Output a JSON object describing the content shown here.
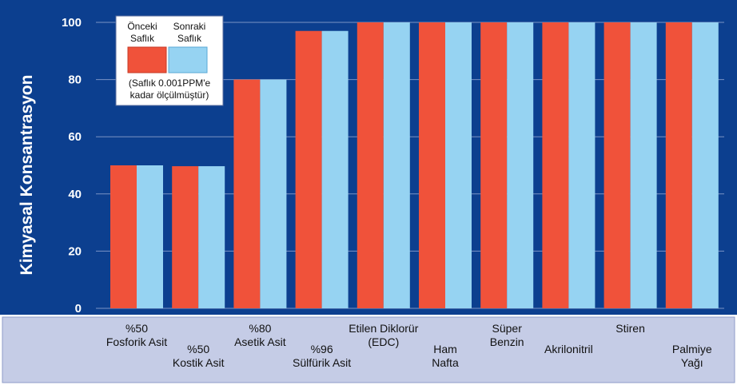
{
  "chart_data": {
    "type": "bar",
    "ylabel": "Kimyasal Konsantrasyon",
    "xlabel": "",
    "ylim": [
      0,
      100
    ],
    "yticks": [
      0,
      20,
      40,
      60,
      80,
      100
    ],
    "grid": true,
    "legend_position": "top-left",
    "categories": [
      [
        "%50",
        "Fosforik Asit"
      ],
      [
        "%50",
        "Kostik Asit"
      ],
      [
        "%80",
        "Asetik Asit"
      ],
      [
        "%96",
        "Sülfürik Asit"
      ],
      [
        "Etilen Diklorür",
        "(EDC)"
      ],
      [
        "Ham",
        "Nafta"
      ],
      [
        "Süper",
        "Benzin"
      ],
      [
        "Akrilonitril"
      ],
      [
        "Stiren"
      ],
      [
        "Palmiye",
        "Yağı"
      ]
    ],
    "series": [
      {
        "name": "Önceki Saflık",
        "legend_lines": [
          "Önceki",
          "Saflık"
        ],
        "color": "#f0523a",
        "values": [
          50,
          49.7,
          80,
          97,
          100,
          100,
          100,
          100,
          100,
          100
        ]
      },
      {
        "name": "Sonraki Saflık",
        "legend_lines": [
          "Sonraki",
          "Saflık"
        ],
        "color": "#96d3f2",
        "values": [
          50,
          49.7,
          80,
          97,
          100,
          100,
          100,
          100,
          100,
          100
        ]
      }
    ],
    "legend_note": [
      "(Saflık 0.001PPM'e",
      "kadar ölçülmüştür)"
    ],
    "colors": {
      "plot_background": "#0c3f8f",
      "label_band": "#c5cce6",
      "gridline": "#7a93c4"
    }
  }
}
